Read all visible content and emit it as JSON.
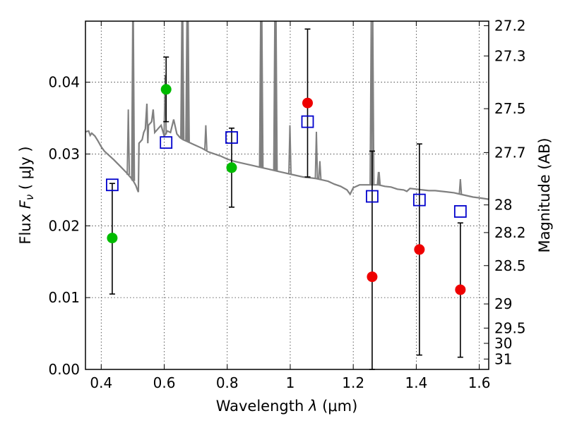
{
  "chart_data": {
    "type": "scatter",
    "xlabel": "Wavelength",
    "xlabel_symbol": "λ",
    "xlabel_unit": "(μm)",
    "ylabel": "Flux",
    "ylabel_symbol": "F",
    "ylabel_subscript": "ν",
    "ylabel_unit": "( μJy )",
    "y2label": "Magnitude (AB)",
    "xlim": [
      0.35,
      1.63
    ],
    "ylim": [
      0.0,
      0.0485
    ],
    "grid": true,
    "x_ticks": [
      0.4,
      0.6,
      0.8,
      1.0,
      1.2,
      1.4,
      1.6
    ],
    "x_tick_labels": [
      "0.4",
      "0.6",
      "0.8",
      "1",
      "1.2",
      "1.4",
      "1.6"
    ],
    "y_ticks": [
      0.0,
      0.01,
      0.02,
      0.03,
      0.04
    ],
    "y_tick_labels": [
      "0.00",
      "0.01",
      "0.02",
      "0.03",
      "0.04"
    ],
    "y2_ticks": [
      {
        "label": "27.2",
        "mag": 27.2
      },
      {
        "label": "27.3",
        "mag": 27.3
      },
      {
        "label": "27.5",
        "mag": 27.5
      },
      {
        "label": "27.7",
        "mag": 27.7
      },
      {
        "label": "28",
        "mag": 28.0
      },
      {
        "label": "28.2",
        "mag": 28.2
      },
      {
        "label": "28.5",
        "mag": 28.5
      },
      {
        "label": "29",
        "mag": 29.0
      },
      {
        "label": "29.5",
        "mag": 29.5
      },
      {
        "label": "30",
        "mag": 30.0
      },
      {
        "label": "31",
        "mag": 31.0
      }
    ],
    "model_spectrum": {
      "color": "#808080",
      "points": [
        [
          0.35,
          0.0331
        ],
        [
          0.36,
          0.0332
        ],
        [
          0.365,
          0.0326
        ],
        [
          0.37,
          0.0329
        ],
        [
          0.38,
          0.0325
        ],
        [
          0.39,
          0.0318
        ],
        [
          0.4,
          0.031
        ],
        [
          0.41,
          0.0304
        ],
        [
          0.42,
          0.03
        ],
        [
          0.44,
          0.0292
        ],
        [
          0.46,
          0.0283
        ],
        [
          0.48,
          0.0274
        ],
        [
          0.5,
          0.0264
        ],
        [
          0.51,
          0.0256
        ],
        [
          0.515,
          0.025
        ],
        [
          0.518,
          0.0247
        ],
        [
          0.52,
          0.0315
        ],
        [
          0.53,
          0.032
        ],
        [
          0.535,
          0.033
        ],
        [
          0.54,
          0.0335
        ],
        [
          0.545,
          0.037
        ],
        [
          0.548,
          0.0315
        ],
        [
          0.55,
          0.034
        ],
        [
          0.56,
          0.0345
        ],
        [
          0.565,
          0.0362
        ],
        [
          0.57,
          0.033
        ],
        [
          0.58,
          0.0335
        ],
        [
          0.59,
          0.034
        ],
        [
          0.6,
          0.0325
        ],
        [
          0.61,
          0.0332
        ],
        [
          0.62,
          0.033
        ],
        [
          0.63,
          0.0348
        ],
        [
          0.64,
          0.0328
        ],
        [
          0.65,
          0.0323
        ],
        [
          0.66,
          0.032
        ],
        [
          0.67,
          0.0318
        ],
        [
          0.69,
          0.0314
        ],
        [
          0.7,
          0.0312
        ],
        [
          0.72,
          0.0308
        ],
        [
          0.74,
          0.0303
        ],
        [
          0.76,
          0.03
        ],
        [
          0.78,
          0.0297
        ],
        [
          0.8,
          0.0293
        ],
        [
          0.82,
          0.029
        ],
        [
          0.84,
          0.0288
        ],
        [
          0.86,
          0.0286
        ],
        [
          0.88,
          0.0284
        ],
        [
          0.9,
          0.0282
        ],
        [
          0.92,
          0.028
        ],
        [
          0.94,
          0.0278
        ],
        [
          0.96,
          0.0276
        ],
        [
          0.98,
          0.0274
        ],
        [
          1.0,
          0.0272
        ],
        [
          1.02,
          0.027
        ],
        [
          1.04,
          0.0268
        ],
        [
          1.06,
          0.0267
        ],
        [
          1.08,
          0.0266
        ],
        [
          1.1,
          0.0264
        ],
        [
          1.12,
          0.0262
        ],
        [
          1.14,
          0.0258
        ],
        [
          1.16,
          0.0255
        ],
        [
          1.18,
          0.025
        ],
        [
          1.19,
          0.0244
        ],
        [
          1.2,
          0.0253
        ],
        [
          1.22,
          0.0257
        ],
        [
          1.24,
          0.0257
        ],
        [
          1.26,
          0.0257
        ],
        [
          1.28,
          0.0257
        ],
        [
          1.3,
          0.0255
        ],
        [
          1.32,
          0.0254
        ],
        [
          1.34,
          0.0251
        ],
        [
          1.36,
          0.025
        ],
        [
          1.37,
          0.0248
        ],
        [
          1.38,
          0.0252
        ],
        [
          1.4,
          0.0251
        ],
        [
          1.42,
          0.025
        ],
        [
          1.44,
          0.0249
        ],
        [
          1.46,
          0.0249
        ],
        [
          1.48,
          0.0248
        ],
        [
          1.5,
          0.0247
        ],
        [
          1.52,
          0.0246
        ],
        [
          1.54,
          0.0244
        ],
        [
          1.56,
          0.0242
        ],
        [
          1.58,
          0.024
        ],
        [
          1.6,
          0.0239
        ],
        [
          1.63,
          0.0237
        ]
      ],
      "emission_lines": [
        {
          "x": 0.486,
          "peak": 0.0362
        },
        {
          "x": 0.5,
          "peak": 0.0485
        },
        {
          "x": 0.502,
          "peak": 0.0485
        },
        {
          "x": 0.603,
          "peak": 0.041
        },
        {
          "x": 0.656,
          "peak": 0.0485
        },
        {
          "x": 0.659,
          "peak": 0.0485
        },
        {
          "x": 0.672,
          "peak": 0.0485
        },
        {
          "x": 0.676,
          "peak": 0.0485
        },
        {
          "x": 0.732,
          "peak": 0.034
        },
        {
          "x": 0.906,
          "peak": 0.0485
        },
        {
          "x": 0.91,
          "peak": 0.0485
        },
        {
          "x": 0.951,
          "peak": 0.0485
        },
        {
          "x": 0.955,
          "peak": 0.0485
        },
        {
          "x": 0.999,
          "peak": 0.034
        },
        {
          "x": 1.083,
          "peak": 0.0331
        },
        {
          "x": 1.094,
          "peak": 0.029
        },
        {
          "x": 1.257,
          "peak": 0.0485
        },
        {
          "x": 1.262,
          "peak": 0.0485
        },
        {
          "x": 1.28,
          "peak": 0.0275
        },
        {
          "x": 1.282,
          "peak": 0.0275
        },
        {
          "x": 1.54,
          "peak": 0.0265
        }
      ]
    },
    "model_points": {
      "color": "#0000cc",
      "points": [
        {
          "x": 0.435,
          "y": 0.0257
        },
        {
          "x": 0.606,
          "y": 0.0316
        },
        {
          "x": 0.814,
          "y": 0.0323
        },
        {
          "x": 1.055,
          "y": 0.0345
        },
        {
          "x": 1.26,
          "y": 0.0241
        },
        {
          "x": 1.41,
          "y": 0.0236
        },
        {
          "x": 1.54,
          "y": 0.022
        }
      ]
    },
    "detections": {
      "color": "#00bb00",
      "points": [
        {
          "x": 0.435,
          "y": 0.0183,
          "yerr_low": 0.0105,
          "yerr_high": 0.0259
        },
        {
          "x": 0.606,
          "y": 0.039,
          "yerr_low": 0.0345,
          "yerr_high": 0.0435
        },
        {
          "x": 0.814,
          "y": 0.0281,
          "yerr_low": 0.0226,
          "yerr_high": 0.0336
        }
      ]
    },
    "non_detections": {
      "color": "#ee0000",
      "points": [
        {
          "x": 1.055,
          "y": 0.0371,
          "yerr_low": 0.0268,
          "yerr_high": 0.0474
        },
        {
          "x": 1.26,
          "y": 0.0129,
          "yerr_low": 0.0,
          "yerr_high": 0.0304
        },
        {
          "x": 1.41,
          "y": 0.0167,
          "yerr_low": 0.002,
          "yerr_high": 0.0314
        },
        {
          "x": 1.54,
          "y": 0.0111,
          "yerr_low": 0.0017,
          "yerr_high": 0.0204
        }
      ]
    }
  }
}
